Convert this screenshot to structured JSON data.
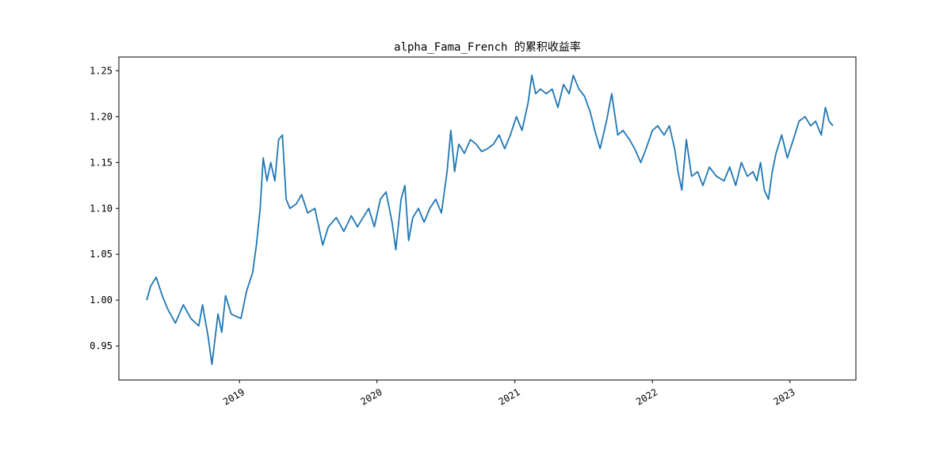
{
  "chart_data": {
    "type": "line",
    "title": "alpha_Fama_French 的累积收益率",
    "xlabel": "",
    "ylabel": "",
    "x_ticks": [
      "2019",
      "2020",
      "2021",
      "2022",
      "2023"
    ],
    "y_ticks": [
      "0.95",
      "1.00",
      "1.05",
      "1.10",
      "1.15",
      "1.20",
      "1.25"
    ],
    "xlim": [
      "2018-02-15",
      "2023-06-25"
    ],
    "ylim": [
      0.913,
      1.265
    ],
    "grid": false,
    "series": [
      {
        "color": "#1f77b4",
        "x": [
          "2018-04-30",
          "2018-05-10",
          "2018-05-25",
          "2018-06-10",
          "2018-06-25",
          "2018-07-15",
          "2018-08-05",
          "2018-08-25",
          "2018-09-15",
          "2018-09-25",
          "2018-10-10",
          "2018-10-20",
          "2018-11-05",
          "2018-11-15",
          "2018-11-25",
          "2018-12-10",
          "2018-12-25",
          "2019-01-05",
          "2019-01-20",
          "2019-02-05",
          "2019-02-15",
          "2019-02-25",
          "2019-03-05",
          "2019-03-15",
          "2019-03-25",
          "2019-04-05",
          "2019-04-15",
          "2019-04-25",
          "2019-05-05",
          "2019-05-15",
          "2019-06-01",
          "2019-06-15",
          "2019-07-01",
          "2019-07-20",
          "2019-08-10",
          "2019-08-25",
          "2019-09-15",
          "2019-10-05",
          "2019-10-25",
          "2019-11-10",
          "2019-11-25",
          "2019-12-10",
          "2019-12-25",
          "2020-01-10",
          "2020-01-25",
          "2020-02-10",
          "2020-02-20",
          "2020-03-05",
          "2020-03-15",
          "2020-03-25",
          "2020-04-05",
          "2020-04-20",
          "2020-05-05",
          "2020-05-20",
          "2020-06-05",
          "2020-06-20",
          "2020-07-05",
          "2020-07-15",
          "2020-07-25",
          "2020-08-05",
          "2020-08-20",
          "2020-09-05",
          "2020-09-20",
          "2020-10-05",
          "2020-10-20",
          "2020-11-05",
          "2020-11-20",
          "2020-12-05",
          "2020-12-20",
          "2021-01-05",
          "2021-01-20",
          "2021-02-05",
          "2021-02-15",
          "2021-02-25",
          "2021-03-10",
          "2021-03-25",
          "2021-04-10",
          "2021-04-25",
          "2021-05-10",
          "2021-05-25",
          "2021-06-05",
          "2021-06-20",
          "2021-07-05",
          "2021-07-20",
          "2021-08-01",
          "2021-08-15",
          "2021-09-01",
          "2021-09-15",
          "2021-10-01",
          "2021-10-15",
          "2021-11-01",
          "2021-11-15",
          "2021-12-01",
          "2021-12-15",
          "2022-01-01",
          "2022-01-15",
          "2022-02-01",
          "2022-02-15",
          "2022-03-01",
          "2022-03-10",
          "2022-03-20",
          "2022-04-01",
          "2022-04-15",
          "2022-05-01",
          "2022-05-15",
          "2022-06-01",
          "2022-06-20",
          "2022-07-10",
          "2022-07-25",
          "2022-08-10",
          "2022-08-25",
          "2022-09-10",
          "2022-09-25",
          "2022-10-05",
          "2022-10-15",
          "2022-10-25",
          "2022-11-05",
          "2022-11-15",
          "2022-11-25",
          "2022-12-10",
          "2022-12-25",
          "2023-01-10",
          "2023-01-25",
          "2023-02-10",
          "2023-02-25",
          "2023-03-10",
          "2023-03-25",
          "2023-04-05",
          "2023-04-15",
          "2023-04-25"
        ],
        "values": [
          1.0,
          1.015,
          1.025,
          1.005,
          0.99,
          0.975,
          0.995,
          0.98,
          0.972,
          0.995,
          0.96,
          0.93,
          0.985,
          0.965,
          1.005,
          0.985,
          0.982,
          0.98,
          1.01,
          1.03,
          1.06,
          1.1,
          1.155,
          1.13,
          1.15,
          1.13,
          1.175,
          1.18,
          1.11,
          1.1,
          1.105,
          1.115,
          1.095,
          1.1,
          1.06,
          1.08,
          1.09,
          1.075,
          1.092,
          1.08,
          1.09,
          1.1,
          1.08,
          1.11,
          1.118,
          1.085,
          1.055,
          1.11,
          1.125,
          1.065,
          1.09,
          1.1,
          1.085,
          1.1,
          1.11,
          1.095,
          1.14,
          1.185,
          1.14,
          1.17,
          1.16,
          1.175,
          1.17,
          1.162,
          1.165,
          1.17,
          1.18,
          1.165,
          1.18,
          1.2,
          1.185,
          1.215,
          1.245,
          1.225,
          1.23,
          1.225,
          1.23,
          1.21,
          1.235,
          1.225,
          1.245,
          1.23,
          1.222,
          1.205,
          1.185,
          1.165,
          1.195,
          1.225,
          1.18,
          1.185,
          1.175,
          1.165,
          1.15,
          1.165,
          1.185,
          1.19,
          1.18,
          1.19,
          1.165,
          1.14,
          1.12,
          1.175,
          1.135,
          1.14,
          1.125,
          1.145,
          1.135,
          1.13,
          1.145,
          1.125,
          1.15,
          1.135,
          1.14,
          1.13,
          1.15,
          1.12,
          1.11,
          1.14,
          1.16,
          1.18,
          1.155,
          1.175,
          1.195,
          1.2,
          1.19,
          1.195,
          1.18,
          1.21,
          1.195,
          1.19
        ]
      }
    ]
  }
}
